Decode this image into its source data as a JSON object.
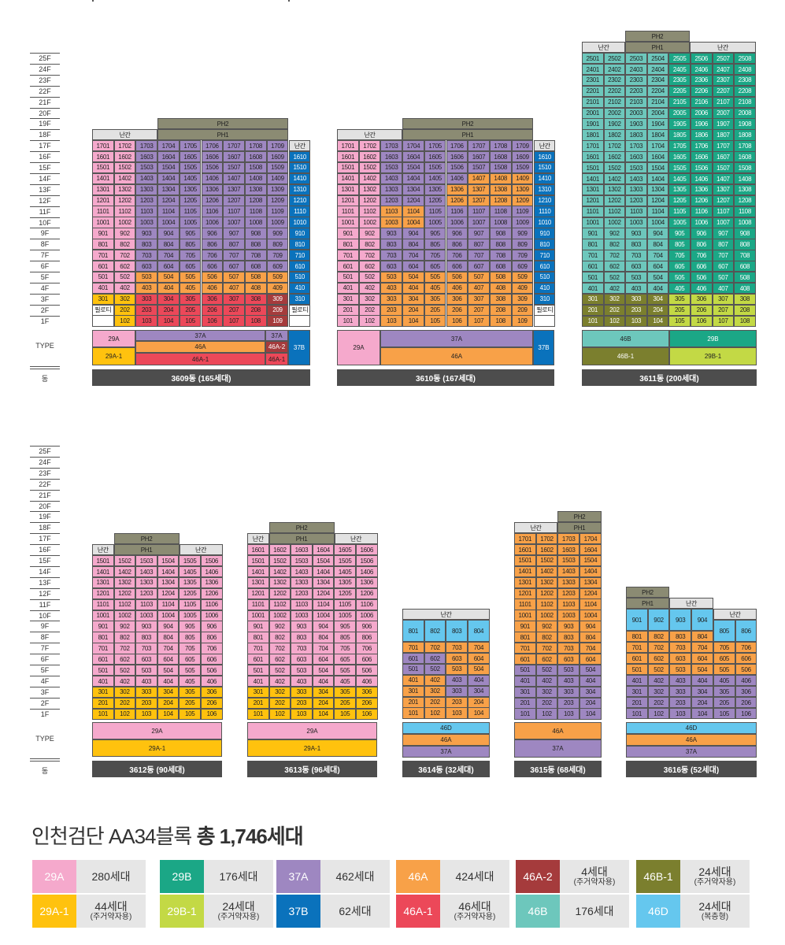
{
  "title_light": "인천검단 AA34블록",
  "title_bold": "총 1,746세대",
  "type_label": "TYPE",
  "dong_label": "동",
  "colors": {
    "29A": "#f5a9cc",
    "29A-1": "#ffc20e",
    "29B": "#1ba786",
    "29B-1": "#c3d945",
    "37A": "#9e87c1",
    "37B": "#0a72bc",
    "46A": "#f8a148",
    "46A-1": "#ec4859",
    "46A-2": "#a53b3c",
    "46B": "#6dc7bc",
    "46B-1": "#7b7f2e",
    "46D": "#65c7ee",
    "loft": "#8b8b73",
    "nan": "#e2e2e2",
    "pil": "#ffffff"
  },
  "floors_top": [
    "25F",
    "24F",
    "23F",
    "22F",
    "21F",
    "20F",
    "19F",
    "18F",
    "17F",
    "16F",
    "15F",
    "14F",
    "13F",
    "12F",
    "11F",
    "10F",
    "9F",
    "8F",
    "7F",
    "6F",
    "5F",
    "4F",
    "3F",
    "2F",
    "1F"
  ],
  "floors_bot": [
    "25F",
    "24F",
    "23F",
    "22F",
    "21F",
    "20F",
    "19F",
    "18F",
    "17F",
    "16F",
    "15F",
    "14F",
    "13F",
    "12F",
    "11F",
    "10F",
    "9F",
    "8F",
    "7F",
    "6F",
    "5F",
    "4F",
    "3F",
    "2F",
    "1F"
  ],
  "buildings": [
    {
      "label": "3609동 (165세대)",
      "cells": [
        [
          "R1",
          "1701",
          "1702",
          "1703",
          "1704",
          "1705",
          "1706",
          "1707",
          "1708",
          "1709",
          "난간"
        ],
        [
          "R2",
          "1601",
          "1602",
          "1603",
          "1604",
          "1605",
          "1606",
          "1607",
          "1608",
          "1609",
          "1610"
        ],
        [
          "R3",
          "1501",
          "1502",
          "1503",
          "1504",
          "1505",
          "1506",
          "1507",
          "1508",
          "1509",
          "1510"
        ],
        [
          "R4",
          "1401",
          "1402",
          "1403",
          "1404",
          "1405",
          "1406",
          "1407",
          "1408",
          "1409",
          "1410"
        ],
        [
          "R5",
          "1301",
          "1302",
          "1303",
          "1304",
          "1305",
          "1306",
          "1307",
          "1308",
          "1309",
          "1310"
        ],
        [
          "R6",
          "1201",
          "1202",
          "1203",
          "1204",
          "1205",
          "1206",
          "1207",
          "1208",
          "1209",
          "1210"
        ],
        [
          "R7",
          "1101",
          "1102",
          "1103",
          "1104",
          "1105",
          "1106",
          "1107",
          "1108",
          "1109",
          "1110"
        ],
        [
          "R8",
          "1001",
          "1002",
          "1003",
          "1004",
          "1005",
          "1006",
          "1007",
          "1008",
          "1009",
          "1010"
        ],
        [
          "R9",
          "901",
          "902",
          "903",
          "904",
          "905",
          "906",
          "907",
          "908",
          "909",
          "910"
        ],
        [
          "R10",
          "801",
          "802",
          "803",
          "804",
          "805",
          "806",
          "807",
          "808",
          "809",
          "810"
        ],
        [
          "R11",
          "701",
          "702",
          "703",
          "704",
          "705",
          "706",
          "707",
          "708",
          "709",
          "710"
        ],
        [
          "R12",
          "601",
          "602",
          "603",
          "604",
          "605",
          "606",
          "607",
          "608",
          "609",
          "610"
        ],
        [
          "R13",
          "501",
          "502",
          "503",
          "504",
          "505",
          "506",
          "507",
          "508",
          "509",
          "510"
        ],
        [
          "R14",
          "401",
          "402",
          "403",
          "404",
          "405",
          "406",
          "407",
          "408",
          "409",
          "410"
        ],
        [
          "R15",
          "301",
          "302",
          "303",
          "304",
          "305",
          "306",
          "307",
          "308",
          "309",
          "310"
        ],
        [
          "R16",
          "필로티",
          "202",
          "203",
          "204",
          "205",
          "206",
          "207",
          "208",
          "209",
          "필로티"
        ],
        [
          "R17",
          "",
          "102",
          "103",
          "104",
          "105",
          "106",
          "107",
          "108",
          "109",
          ""
        ]
      ],
      "roof": [
        "난간",
        "PH1",
        "PH2"
      ],
      "types": [
        "29A",
        "37A",
        "37A",
        "46A",
        "46A-2",
        "37B",
        "29A-1",
        "46A-1",
        "46A-1"
      ]
    },
    {
      "label": "3610동 (167세대)",
      "cells": [
        [
          "R1",
          "1701",
          "1702",
          "1703",
          "1704",
          "1705",
          "1706",
          "1707",
          "1708",
          "1709",
          "난간"
        ],
        [
          "R2",
          "1601",
          "1602",
          "1603",
          "1604",
          "1605",
          "1606",
          "1607",
          "1608",
          "1609",
          "1610"
        ],
        [
          "R3",
          "1501",
          "1502",
          "1503",
          "1504",
          "1505",
          "1506",
          "1507",
          "1508",
          "1509",
          "1510"
        ],
        [
          "R4",
          "1401",
          "1402",
          "1403",
          "1404",
          "1405",
          "1406",
          "1407",
          "1408",
          "1409",
          "1410"
        ],
        [
          "R5",
          "1301",
          "1302",
          "1303",
          "1304",
          "1305",
          "1306",
          "1307",
          "1308",
          "1309",
          "1310"
        ],
        [
          "R6",
          "1201",
          "1202",
          "1203",
          "1204",
          "1205",
          "1206",
          "1207",
          "1208",
          "1209",
          "1210"
        ],
        [
          "R7",
          "1101",
          "1102",
          "1103",
          "1104",
          "1105",
          "1106",
          "1107",
          "1108",
          "1109",
          "1110"
        ],
        [
          "R8",
          "1001",
          "1002",
          "1003",
          "1004",
          "1005",
          "1006",
          "1007",
          "1008",
          "1009",
          "1010"
        ],
        [
          "R9",
          "901",
          "902",
          "903",
          "904",
          "905",
          "906",
          "907",
          "908",
          "909",
          "910"
        ],
        [
          "R10",
          "801",
          "802",
          "803",
          "804",
          "805",
          "806",
          "807",
          "808",
          "809",
          "810"
        ],
        [
          "R11",
          "701",
          "702",
          "703",
          "704",
          "705",
          "706",
          "707",
          "708",
          "709",
          "710"
        ],
        [
          "R12",
          "601",
          "602",
          "603",
          "604",
          "605",
          "606",
          "607",
          "608",
          "609",
          "610"
        ],
        [
          "R13",
          "501",
          "502",
          "503",
          "504",
          "505",
          "506",
          "507",
          "508",
          "509",
          "510"
        ],
        [
          "R14",
          "401",
          "402",
          "403",
          "404",
          "405",
          "406",
          "407",
          "408",
          "409",
          "410"
        ],
        [
          "R15",
          "301",
          "302",
          "303",
          "304",
          "305",
          "306",
          "307",
          "308",
          "309",
          "310"
        ],
        [
          "R16",
          "201",
          "202",
          "203",
          "204",
          "205",
          "206",
          "207",
          "208",
          "209",
          "필로티"
        ],
        [
          "R17",
          "101",
          "102",
          "103",
          "104",
          "105",
          "106",
          "107",
          "108",
          "109",
          ""
        ]
      ],
      "roof": [
        "난간",
        "PH1",
        "PH2"
      ],
      "types": [
        "29A",
        "37A",
        "46A",
        "37B"
      ]
    },
    {
      "label": "3611동 (200세대)",
      "roof": [
        "난간",
        "PH1",
        "난간",
        "PH2"
      ],
      "types": [
        "46B",
        "29B",
        "46B-1",
        "29B-1"
      ]
    },
    {
      "label": "3612동 (90세대)",
      "roof": [
        "난간",
        "PH1",
        "난간",
        "PH2"
      ],
      "types": [
        "29A",
        "29A-1"
      ]
    },
    {
      "label": "3613동 (96세대)",
      "roof": [
        "난간",
        "PH1",
        "난간",
        "PH2"
      ],
      "types": [
        "29A",
        "29A-1"
      ]
    },
    {
      "label": "3614동 (32세대)",
      "roof": [
        "난간"
      ],
      "types": [
        "46D",
        "46A",
        "37A"
      ]
    },
    {
      "label": "3615동 (68세대)",
      "roof": [
        "난간",
        "PH1",
        "PH2"
      ],
      "types": [
        "46A",
        "37A"
      ]
    },
    {
      "label": "3616동 (52세대)",
      "roof": [
        "PH1",
        "난간",
        "난간",
        "PH2"
      ],
      "types": [
        "46D",
        "46A",
        "37A"
      ]
    }
  ],
  "units": {
    "b3611": [
      "2501",
      "2502",
      "2503",
      "2504",
      "2505",
      "2506",
      "2507",
      "2508",
      "2401",
      "2402",
      "2403",
      "2404",
      "2405",
      "2406",
      "2407",
      "2408",
      "2301",
      "2302",
      "2303",
      "2304",
      "2305",
      "2306",
      "2307",
      "2308",
      "2201",
      "2202",
      "2203",
      "2204",
      "2205",
      "2206",
      "2207",
      "2208",
      "2101",
      "2102",
      "2103",
      "2104",
      "2105",
      "2106",
      "2107",
      "2108",
      "2001",
      "2002",
      "2003",
      "2004",
      "2005",
      "2006",
      "2007",
      "2008",
      "1901",
      "1902",
      "1903",
      "1904",
      "1905",
      "1906",
      "1907",
      "1908",
      "1801",
      "1802",
      "1803",
      "1804",
      "1805",
      "1806",
      "1807",
      "1808",
      "1701",
      "1702",
      "1703",
      "1704",
      "1705",
      "1706",
      "1707",
      "1708",
      "1601",
      "1602",
      "1603",
      "1604",
      "1605",
      "1606",
      "1607",
      "1608",
      "1501",
      "1502",
      "1503",
      "1504",
      "1505",
      "1506",
      "1507",
      "1508",
      "1401",
      "1402",
      "1403",
      "1404",
      "1405",
      "1406",
      "1407",
      "1408",
      "1301",
      "1302",
      "1303",
      "1304",
      "1305",
      "1306",
      "1307",
      "1308",
      "1201",
      "1202",
      "1203",
      "1204",
      "1205",
      "1206",
      "1207",
      "1208",
      "1101",
      "1102",
      "1103",
      "1104",
      "1105",
      "1106",
      "1107",
      "1108",
      "1001",
      "1002",
      "1003",
      "1004",
      "1005",
      "1006",
      "1007",
      "1008",
      "901",
      "902",
      "903",
      "904",
      "905",
      "906",
      "907",
      "908",
      "801",
      "802",
      "803",
      "804",
      "805",
      "806",
      "807",
      "808",
      "701",
      "702",
      "703",
      "704",
      "705",
      "706",
      "707",
      "708",
      "601",
      "602",
      "603",
      "604",
      "605",
      "606",
      "607",
      "608",
      "501",
      "502",
      "503",
      "504",
      "505",
      "506",
      "507",
      "508",
      "401",
      "402",
      "403",
      "404",
      "405",
      "406",
      "407",
      "408",
      "301",
      "302",
      "303",
      "304",
      "305",
      "306",
      "307",
      "308",
      "201",
      "202",
      "203",
      "204",
      "205",
      "206",
      "207",
      "208",
      "101",
      "102",
      "103",
      "104",
      "105",
      "106",
      "107",
      "108"
    ],
    "b3612": [
      "1501",
      "1502",
      "1503",
      "1504",
      "1505",
      "1506",
      "1401",
      "1402",
      "1403",
      "1404",
      "1405",
      "1406",
      "1301",
      "1302",
      "1303",
      "1304",
      "1305",
      "1306",
      "1201",
      "1202",
      "1203",
      "1204",
      "1205",
      "1206",
      "1101",
      "1102",
      "1103",
      "1104",
      "1105",
      "1106",
      "1001",
      "1002",
      "1003",
      "1004",
      "1005",
      "1006",
      "901",
      "902",
      "903",
      "904",
      "905",
      "906",
      "801",
      "802",
      "803",
      "804",
      "805",
      "806",
      "701",
      "702",
      "703",
      "704",
      "705",
      "706",
      "601",
      "602",
      "603",
      "604",
      "605",
      "606",
      "501",
      "502",
      "503",
      "504",
      "505",
      "506",
      "401",
      "402",
      "403",
      "404",
      "405",
      "406",
      "301",
      "302",
      "303",
      "304",
      "305",
      "306",
      "201",
      "202",
      "203",
      "204",
      "205",
      "206",
      "101",
      "102",
      "103",
      "104",
      "105",
      "106"
    ],
    "b3613": [
      "1601",
      "1602",
      "1603",
      "1604",
      "1605",
      "1606",
      "1501",
      "1502",
      "1503",
      "1504",
      "1505",
      "1506",
      "1401",
      "1402",
      "1403",
      "1404",
      "1405",
      "1406",
      "1301",
      "1302",
      "1303",
      "1304",
      "1305",
      "1306",
      "1201",
      "1202",
      "1203",
      "1204",
      "1205",
      "1206",
      "1101",
      "1102",
      "1103",
      "1104",
      "1105",
      "1106",
      "1001",
      "1002",
      "1003",
      "1004",
      "1005",
      "1006",
      "901",
      "902",
      "903",
      "904",
      "905",
      "906",
      "801",
      "802",
      "803",
      "804",
      "805",
      "806",
      "701",
      "702",
      "703",
      "704",
      "705",
      "706",
      "601",
      "602",
      "603",
      "604",
      "605",
      "606",
      "501",
      "502",
      "503",
      "504",
      "505",
      "506",
      "401",
      "402",
      "403",
      "404",
      "405",
      "406",
      "301",
      "302",
      "303",
      "304",
      "305",
      "306",
      "201",
      "202",
      "203",
      "204",
      "205",
      "206",
      "101",
      "102",
      "103",
      "104",
      "105",
      "106"
    ],
    "b3614": [
      "801",
      "802",
      "803",
      "804",
      "701",
      "702",
      "703",
      "704",
      "601",
      "602",
      "603",
      "604",
      "501",
      "502",
      "503",
      "504",
      "401",
      "402",
      "403",
      "404",
      "301",
      "302",
      "303",
      "304",
      "201",
      "202",
      "203",
      "204",
      "101",
      "102",
      "103",
      "104"
    ],
    "b3615": [
      "1701",
      "1702",
      "1703",
      "1704",
      "1601",
      "1602",
      "1603",
      "1604",
      "1501",
      "1502",
      "1503",
      "1504",
      "1401",
      "1402",
      "1403",
      "1404",
      "1301",
      "1302",
      "1303",
      "1304",
      "1201",
      "1202",
      "1203",
      "1204",
      "1101",
      "1102",
      "1103",
      "1104",
      "1001",
      "1002",
      "1003",
      "1004",
      "901",
      "902",
      "903",
      "904",
      "801",
      "802",
      "803",
      "804",
      "701",
      "702",
      "703",
      "704",
      "601",
      "602",
      "603",
      "604",
      "501",
      "502",
      "503",
      "504",
      "401",
      "402",
      "403",
      "404",
      "301",
      "302",
      "303",
      "304",
      "201",
      "202",
      "203",
      "204",
      "101",
      "102",
      "103",
      "104"
    ],
    "b3616": [
      "901",
      "902",
      "903",
      "904",
      "805",
      "806",
      "801",
      "802",
      "803",
      "804",
      "705",
      "706",
      "701",
      "702",
      "703",
      "704",
      "605",
      "606",
      "601",
      "602",
      "603",
      "604",
      "505",
      "506",
      "501",
      "502",
      "503",
      "504",
      "405",
      "406",
      "401",
      "402",
      "403",
      "404",
      "305",
      "306",
      "301",
      "302",
      "303",
      "304",
      "205",
      "206",
      "201",
      "202",
      "203",
      "204",
      "105",
      "106",
      "101",
      "102",
      "103",
      "104"
    ]
  },
  "legend": [
    {
      "type": "29A",
      "count": "280세대"
    },
    {
      "type": "29B",
      "count": "176세대"
    },
    {
      "type": "37A",
      "count": "462세대"
    },
    {
      "type": "46A",
      "count": "424세대"
    },
    {
      "type": "46A-2",
      "count": "4세대",
      "sub": "(주거약자용)"
    },
    {
      "type": "46B-1",
      "count": "24세대",
      "sub": "(주거약자용)"
    },
    {
      "type": "29A-1",
      "count": "44세대",
      "sub": "(주거약자용)"
    },
    {
      "type": "29B-1",
      "count": "24세대",
      "sub": "(주거약자용)"
    },
    {
      "type": "37B",
      "count": "62세대"
    },
    {
      "type": "46A-1",
      "count": "46세대",
      "sub": "(주거약자용)"
    },
    {
      "type": "46B",
      "count": "176세대"
    },
    {
      "type": "46D",
      "count": "24세대",
      "sub": "(복층형)"
    }
  ]
}
